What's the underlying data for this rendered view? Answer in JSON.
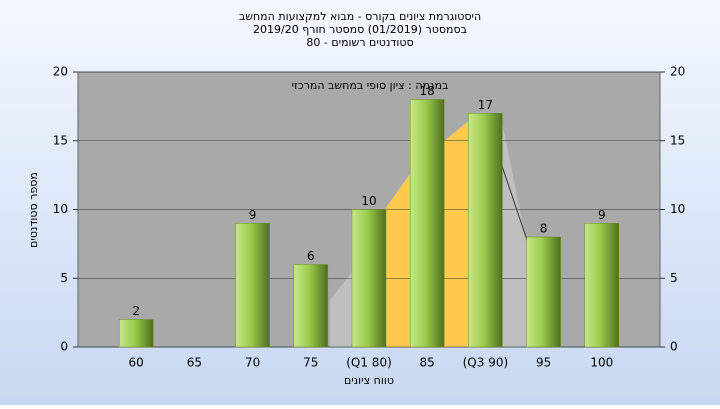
{
  "chart_data": {
    "type": "bar",
    "title": "היסטוגרמת ציונים בקורס - מבוא למקצועות המחשב",
    "subtitle": "בסמסטר (01/2019) סמסטר חורף 2019/20",
    "subtitle2": "סטודנטים רשומים - 80",
    "annotation": "במגמה : ציון סופי במחשב המרכזי",
    "x_label": "טווח ציונים",
    "y_label": "מספר סטודנטים",
    "categories": [
      "60",
      "65",
      "70",
      "75",
      "(Q1 80)",
      "85",
      "(Q3 90)",
      "95",
      "100"
    ],
    "values": [
      2,
      null,
      9,
      6,
      10,
      18,
      17,
      8,
      9
    ],
    "color": "#9acd4c",
    "ylim": [
      0,
      20
    ],
    "yticks": [
      0,
      5,
      10,
      15,
      20
    ],
    "y2lim": [
      0,
      20
    ],
    "y2ticks": [
      0,
      5,
      10,
      15,
      20
    ],
    "grid": true
  }
}
